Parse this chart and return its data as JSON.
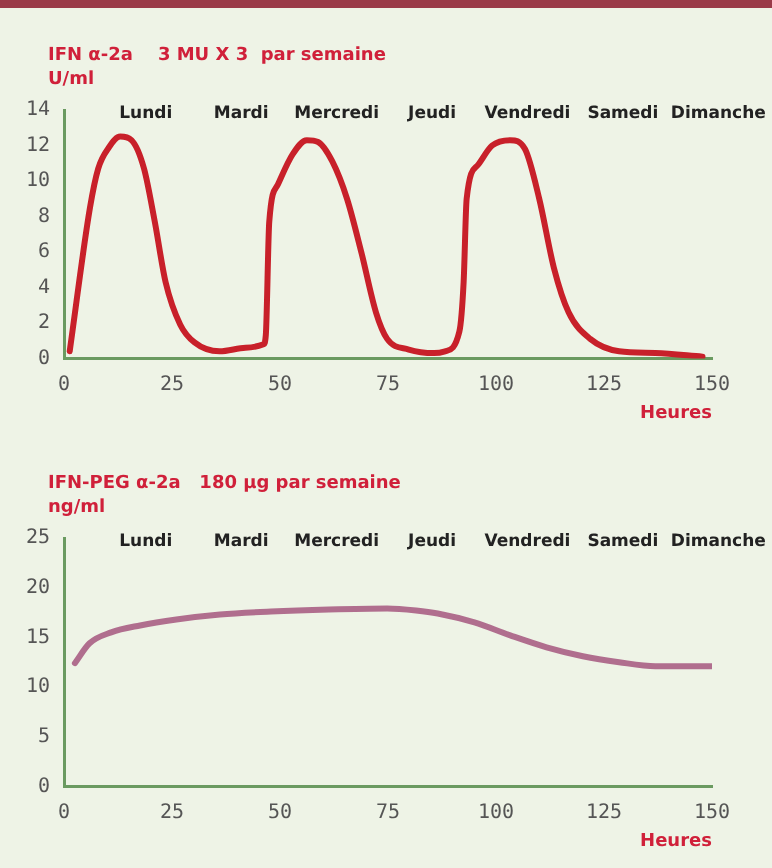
{
  "chart_data": [
    {
      "type": "line",
      "title": "IFN α-2a    3 MU X 3  par semaine",
      "ylabel": "U/ml",
      "xlabel": "Heures",
      "annotations": [
        "Lundi",
        "Mardi",
        "Mercredi",
        "Jeudi",
        "Vendredi",
        "Samedi",
        "Dimanche"
      ],
      "series": [
        {
          "color": "#c8202a",
          "x": [
            1.3,
            6,
            7.9,
            10.4,
            13,
            15.6,
            18.5,
            21,
            23.5,
            26.9,
            30.2,
            36,
            42,
            46.2,
            46.7,
            47.5,
            49.5,
            52.9,
            56.2,
            58.8,
            62.1,
            65.5,
            68.8,
            72.2,
            74.8,
            79.8,
            85.7,
            88.2,
            91.5,
            92.5,
            93.2,
            95.8,
            99.1,
            103.3,
            106.7,
            110,
            113.4,
            116.8,
            121.8,
            128.5,
            136.9,
            147.8
          ],
          "values": [
            0.4,
            8.5,
            10.7,
            11.9,
            12.5,
            12.3,
            10.7,
            7.7,
            4.3,
            1.9,
            0.9,
            0.4,
            0.6,
            0.8,
            1.3,
            7.7,
            9.8,
            11.5,
            12.3,
            12.2,
            11.1,
            9,
            6,
            2.6,
            1.1,
            0.5,
            0.3,
            0.4,
            1.5,
            4.3,
            9,
            10.9,
            12,
            12.3,
            11.8,
            9,
            5.1,
            2.6,
            1.1,
            0.4,
            0.3,
            0.1
          ]
        }
      ],
      "xlim": [
        0,
        150
      ],
      "xticks": [
        0,
        25,
        50,
        75,
        100,
        125,
        150
      ],
      "ylim": [
        0,
        14
      ],
      "yticks": [
        0,
        2,
        4,
        6,
        8,
        10,
        12,
        14
      ],
      "grid": false,
      "legend": false,
      "marker": "none",
      "line_style": "solid"
    },
    {
      "type": "line",
      "title": "IFN-PEG α-2a   180 µg par semaine",
      "ylabel": "ng/ml",
      "xlabel": "Heures",
      "annotations": [
        "Lundi",
        "Mardi",
        "Mercredi",
        "Jeudi",
        "Vendredi",
        "Samedi",
        "Dimanche"
      ],
      "series": [
        {
          "color": "#b06e8e",
          "x": [
            2.5,
            5.9,
            10.9,
            17.6,
            26,
            36.1,
            47.9,
            61.3,
            74.8,
            81.5,
            86.5,
            95,
            103.3,
            111.7,
            120.1,
            128.5,
            136.9,
            150
          ],
          "values": [
            12.4,
            14.4,
            15.5,
            16.2,
            16.8,
            17.3,
            17.6,
            17.8,
            17.9,
            17.7,
            17.4,
            16.5,
            15.2,
            14,
            13.1,
            12.5,
            12.1,
            12.1
          ]
        }
      ],
      "xlim": [
        0,
        150
      ],
      "xticks": [
        0,
        25,
        50,
        75,
        100,
        125,
        150
      ],
      "ylim": [
        0,
        25
      ],
      "yticks": [
        0,
        5,
        10,
        15,
        20,
        25
      ],
      "grid": false,
      "legend": false,
      "marker": "none",
      "line_style": "solid"
    }
  ]
}
